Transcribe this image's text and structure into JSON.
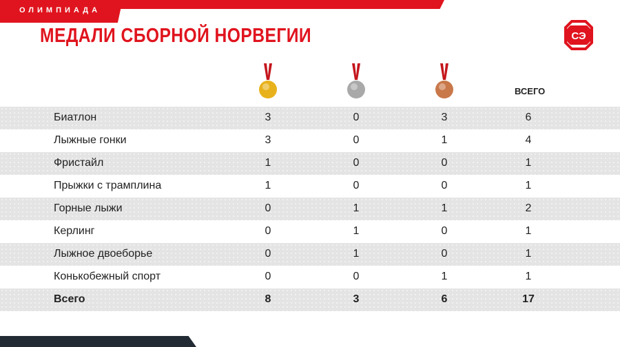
{
  "header": {
    "category": "ОЛИМПИАДА",
    "title": "МЕДАЛИ СБОРНОЙ НОРВЕГИИ",
    "logo_text": "СЭ"
  },
  "columns": {
    "gold": "gold-medal-icon",
    "silver": "silver-medal-icon",
    "bronze": "bronze-medal-icon",
    "total": "ВСЕГО"
  },
  "colors": {
    "accent": "#e0141e",
    "gold": "#e8b21c",
    "silver": "#a9a9a9",
    "bronze": "#c9784a"
  },
  "rows": [
    {
      "sport": "Биатлон",
      "gold": "3",
      "silver": "0",
      "bronze": "3",
      "total": "6"
    },
    {
      "sport": "Лыжные гонки",
      "gold": "3",
      "silver": "0",
      "bronze": "1",
      "total": "4"
    },
    {
      "sport": "Фристайл",
      "gold": "1",
      "silver": "0",
      "bronze": "0",
      "total": "1"
    },
    {
      "sport": "Прыжки с трамплина",
      "gold": "1",
      "silver": "0",
      "bronze": "0",
      "total": "1"
    },
    {
      "sport": "Горные лыжи",
      "gold": "0",
      "silver": "1",
      "bronze": "1",
      "total": "2"
    },
    {
      "sport": "Керлинг",
      "gold": "0",
      "silver": "1",
      "bronze": "0",
      "total": "1"
    },
    {
      "sport": "Лыжное двоеборье",
      "gold": "0",
      "silver": "1",
      "bronze": "0",
      "total": "1"
    },
    {
      "sport": "Конькобежный спорт",
      "gold": "0",
      "silver": "0",
      "bronze": "1",
      "total": "1"
    }
  ],
  "totals": {
    "label": "Всего",
    "gold": "8",
    "silver": "3",
    "bronze": "6",
    "total": "17"
  }
}
